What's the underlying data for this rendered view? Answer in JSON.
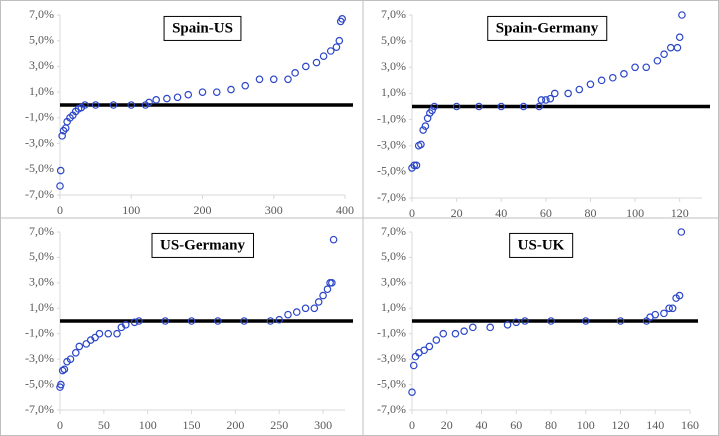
{
  "chart_data": [
    {
      "type": "scatter",
      "title": "Spain-US",
      "color": "#2b46c8",
      "x": [
        0,
        1,
        3,
        5,
        8,
        10,
        14,
        18,
        22,
        26,
        30,
        35,
        50,
        75,
        100,
        120,
        125,
        135,
        150,
        165,
        180,
        200,
        220,
        240,
        260,
        280,
        300,
        320,
        330,
        345,
        360,
        370,
        380,
        388,
        392,
        394,
        396
      ],
      "values": [
        -6.3,
        -5.1,
        -2.4,
        -2.0,
        -1.8,
        -1.3,
        -1.0,
        -0.8,
        -0.5,
        -0.3,
        -0.2,
        0,
        0,
        0,
        0,
        0,
        0.2,
        0.4,
        0.5,
        0.6,
        0.8,
        1.0,
        1.0,
        1.2,
        1.5,
        2.0,
        2.0,
        2.0,
        2.5,
        3.0,
        3.3,
        3.8,
        4.2,
        4.5,
        5.0,
        6.5,
        6.7
      ],
      "reference_line": 0,
      "xlim": [
        0,
        400
      ],
      "xticks": [
        0,
        100,
        200,
        300,
        400
      ],
      "ylim": [
        -7,
        7
      ],
      "yticks": [
        {
          "value": -7,
          "label": "-7,0%"
        },
        {
          "value": -5,
          "label": "-5,0%"
        },
        {
          "value": -3,
          "label": "-3,0%"
        },
        {
          "value": -1,
          "label": "-1,0%"
        },
        {
          "value": 1,
          "label": "1,0%"
        },
        {
          "value": 3,
          "label": "3,0%"
        },
        {
          "value": 5,
          "label": "5,0%"
        },
        {
          "value": 7,
          "label": "7,0%"
        }
      ]
    },
    {
      "type": "scatter",
      "title": "Spain-Germany",
      "color": "#2b46c8",
      "x": [
        0,
        1,
        2,
        3,
        4,
        5,
        6,
        7,
        8,
        9,
        10,
        20,
        30,
        40,
        50,
        57,
        58,
        60,
        62,
        64,
        70,
        75,
        80,
        85,
        90,
        95,
        100,
        105,
        110,
        113,
        116,
        119,
        120,
        121
      ],
      "values": [
        -4.7,
        -4.5,
        -4.5,
        -3.0,
        -2.9,
        -1.8,
        -1.5,
        -0.9,
        -0.5,
        -0.3,
        0,
        0,
        0,
        0,
        0,
        0,
        0.5,
        0.5,
        0.6,
        1.0,
        1.0,
        1.3,
        1.7,
        2.0,
        2.2,
        2.5,
        3.0,
        3.0,
        3.5,
        4.0,
        4.5,
        4.5,
        5.3,
        7.0
      ],
      "reference_line": 0,
      "xlim": [
        0,
        130
      ],
      "xticks": [
        0,
        20,
        40,
        60,
        80,
        100,
        120
      ],
      "ylim": [
        -7,
        7
      ],
      "yticks": [
        {
          "value": -7,
          "label": "-7,0%"
        },
        {
          "value": -5,
          "label": "-5,0%"
        },
        {
          "value": -3,
          "label": "-3,0%"
        },
        {
          "value": -1,
          "label": "-1,0%"
        },
        {
          "value": 1,
          "label": "1,0%"
        },
        {
          "value": 3,
          "label": "3,0%"
        },
        {
          "value": 5,
          "label": "5,0%"
        },
        {
          "value": 7,
          "label": "7,0%"
        }
      ]
    },
    {
      "type": "scatter",
      "title": "US-Germany",
      "color": "#2b46c8",
      "x": [
        0,
        1,
        3,
        5,
        8,
        12,
        18,
        22,
        30,
        35,
        40,
        45,
        55,
        65,
        70,
        75,
        85,
        90,
        120,
        150,
        180,
        210,
        240,
        250,
        260,
        270,
        280,
        290,
        295,
        300,
        305,
        308,
        310,
        312
      ],
      "values": [
        -5.2,
        -5.0,
        -3.9,
        -3.8,
        -3.2,
        -3.0,
        -2.5,
        -2.0,
        -1.8,
        -1.5,
        -1.3,
        -1.0,
        -1.0,
        -1.0,
        -0.5,
        -0.3,
        -0.1,
        0,
        0,
        0,
        0,
        0,
        0,
        0.1,
        0.5,
        0.7,
        1.0,
        1.0,
        1.5,
        2.0,
        2.5,
        3.0,
        3.0,
        6.4
      ],
      "reference_line": 0,
      "xlim": [
        0,
        325
      ],
      "xticks": [
        0,
        50,
        100,
        150,
        200,
        250,
        300
      ],
      "ylim": [
        -7,
        7
      ],
      "yticks": [
        {
          "value": -7,
          "label": "-7,0%"
        },
        {
          "value": -5,
          "label": "-5,0%"
        },
        {
          "value": -3,
          "label": "-3,0%"
        },
        {
          "value": -1,
          "label": "-1,0%"
        },
        {
          "value": 1,
          "label": "1,0%"
        },
        {
          "value": 3,
          "label": "3,0%"
        },
        {
          "value": 5,
          "label": "5,0%"
        },
        {
          "value": 7,
          "label": "7,0%"
        }
      ]
    },
    {
      "type": "scatter",
      "title": "US-UK",
      "color": "#2b46c8",
      "x": [
        0,
        1,
        2,
        4,
        7,
        10,
        14,
        18,
        25,
        30,
        35,
        45,
        55,
        60,
        65,
        80,
        100,
        120,
        135,
        137,
        140,
        145,
        148,
        150,
        152,
        154,
        155
      ],
      "values": [
        -5.6,
        -3.5,
        -2.8,
        -2.5,
        -2.3,
        -2.0,
        -1.5,
        -1.0,
        -1.0,
        -0.8,
        -0.5,
        -0.5,
        -0.3,
        -0.1,
        0,
        0,
        0,
        0,
        0,
        0.3,
        0.5,
        0.6,
        1.0,
        1.0,
        1.8,
        2.0,
        7.0
      ],
      "reference_line": 0,
      "xlim": [
        0,
        160
      ],
      "xticks": [
        0,
        20,
        40,
        60,
        80,
        100,
        120,
        140,
        160
      ],
      "ylim": [
        -7,
        7
      ],
      "yticks": [
        {
          "value": -7,
          "label": "-7,0%"
        },
        {
          "value": -5,
          "label": "-5,0%"
        },
        {
          "value": -3,
          "label": "-3,0%"
        },
        {
          "value": -1,
          "label": "-1,0%"
        },
        {
          "value": 1,
          "label": "1,0%"
        },
        {
          "value": 3,
          "label": "3,0%"
        },
        {
          "value": 5,
          "label": "5,0%"
        },
        {
          "value": 7,
          "label": "7,0%"
        }
      ]
    }
  ]
}
